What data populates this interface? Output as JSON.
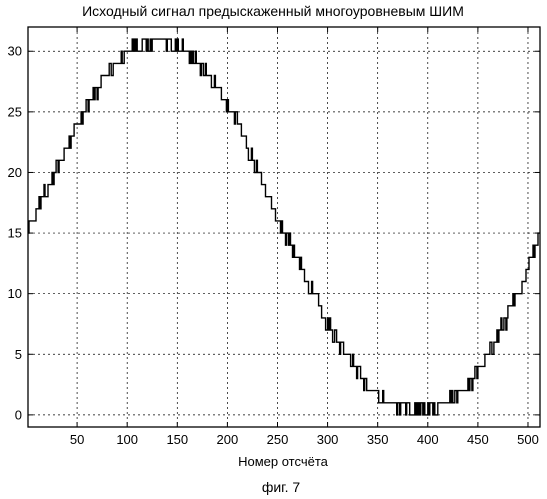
{
  "figure": {
    "caption": "фиг. 7"
  },
  "chart_data": {
    "type": "line",
    "title": "Исходный сигнал предыскаженный многоуровневым ШИМ",
    "xlabel": "Номер отсчёта",
    "ylabel": "",
    "xlim": [
      1,
      512
    ],
    "ylim": [
      -1,
      32
    ],
    "x_ticks": [
      50,
      100,
      150,
      200,
      250,
      300,
      350,
      400,
      450,
      500
    ],
    "y_ticks": [
      0,
      5,
      10,
      15,
      20,
      25,
      30
    ],
    "grid": true,
    "series": [
      {
        "description_of_signal": "sine-shaped staircase from a multilevel PWM, one period over the sample range",
        "x": [
          1,
          25,
          50,
          75,
          100,
          115,
          130,
          145,
          160,
          185,
          210,
          235,
          260,
          285,
          310,
          335,
          360,
          375,
          390,
          405,
          420,
          445,
          470,
          495,
          512
        ],
        "values": [
          15.5,
          19.5,
          24,
          27.5,
          30,
          30.5,
          31,
          30.5,
          30,
          27.5,
          24,
          19,
          14.5,
          10,
          6,
          3,
          1,
          0.5,
          0.3,
          0.5,
          1,
          3,
          6.5,
          11,
          15
        ]
      }
    ]
  }
}
